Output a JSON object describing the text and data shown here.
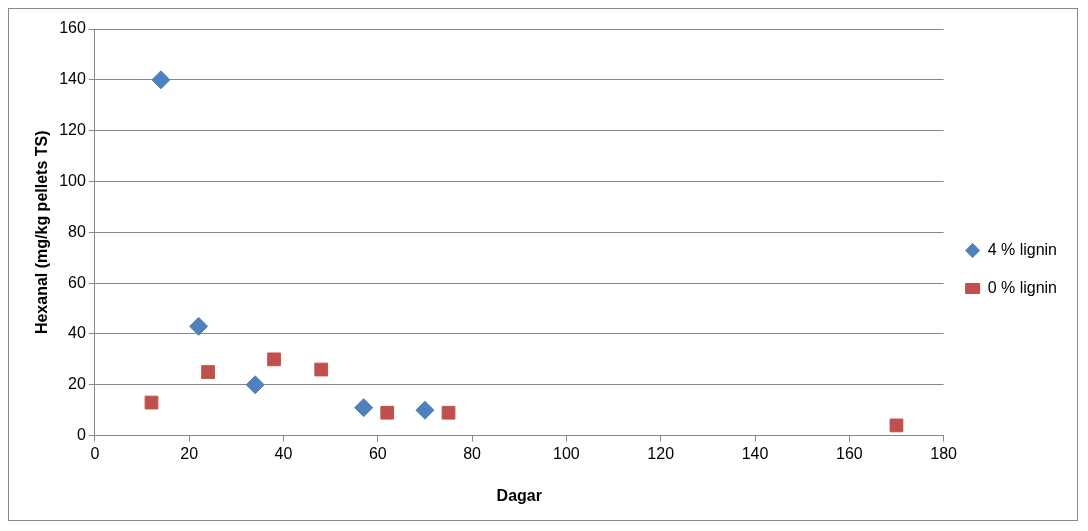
{
  "chart_data": {
    "type": "scatter",
    "xlabel": "Dagar",
    "ylabel": "Hexanal (mg/kg pellets TS)",
    "xlim": [
      0,
      180
    ],
    "xticks": [
      0,
      20,
      40,
      60,
      80,
      100,
      120,
      140,
      160,
      180
    ],
    "ylim": [
      0,
      160
    ],
    "yticks": [
      0,
      20,
      40,
      60,
      80,
      100,
      120,
      140,
      160
    ],
    "grid": "y",
    "legend": "right",
    "series": [
      {
        "name": "4 % lignin",
        "color": "#4f81bd",
        "marker": "diamond",
        "x": [
          14,
          22,
          34,
          57,
          70
        ],
        "values": [
          140,
          43,
          20,
          11,
          10
        ]
      },
      {
        "name": "0 % lignin",
        "color": "#c0504d",
        "marker": "square",
        "x": [
          12,
          24,
          38,
          48,
          62,
          75,
          170
        ],
        "values": [
          13,
          25,
          30,
          26,
          9,
          9,
          4
        ]
      }
    ]
  }
}
